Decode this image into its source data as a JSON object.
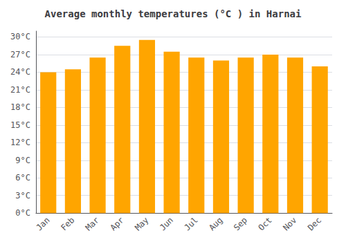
{
  "chart_data": {
    "type": "bar",
    "title": "Average monthly temperatures (°C ) in Harnai",
    "categories": [
      "Jan",
      "Feb",
      "Mar",
      "Apr",
      "May",
      "Jun",
      "Jul",
      "Aug",
      "Sep",
      "Oct",
      "Nov",
      "Dec"
    ],
    "values": [
      24.0,
      24.5,
      26.5,
      28.5,
      29.5,
      27.5,
      26.5,
      26.0,
      26.5,
      27.0,
      26.5,
      25.0
    ],
    "color": "#FFA500",
    "ylim": [
      0,
      31
    ],
    "yticks": [
      {
        "value": 0,
        "label": "0°C"
      },
      {
        "value": 3,
        "label": "3°C"
      },
      {
        "value": 6,
        "label": "6°C"
      },
      {
        "value": 9,
        "label": "9°C"
      },
      {
        "value": 12,
        "label": "12°C"
      },
      {
        "value": 15,
        "label": "15°C"
      },
      {
        "value": 18,
        "label": "18°C"
      },
      {
        "value": 21,
        "label": "21°C"
      },
      {
        "value": 24,
        "label": "24°C"
      },
      {
        "value": 27,
        "label": "27°C"
      },
      {
        "value": 30,
        "label": "30°C"
      }
    ],
    "grid": true
  }
}
